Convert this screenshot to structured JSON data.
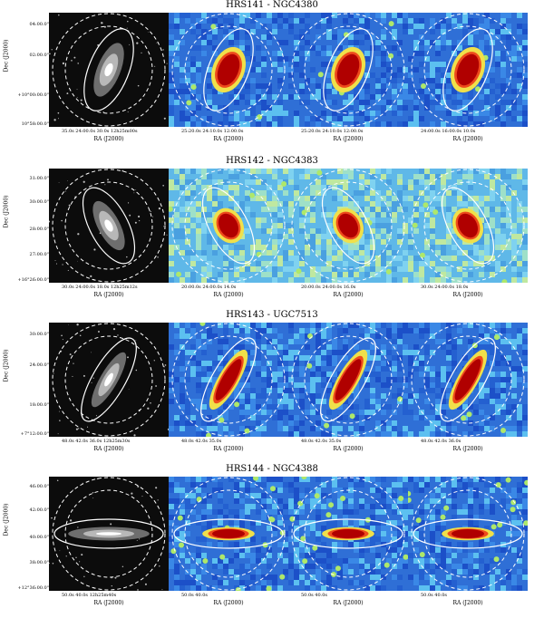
{
  "rows": [
    {
      "title": "HRS141 - NGC4380",
      "dec_label": "Dec (J2000)",
      "dec_ticks": [
        "04:00.0\"",
        "02:00.0\"",
        "+10°00:00.0\"",
        "10°58:00.0\""
      ],
      "panels": [
        {
          "ra_ticks": "35.0s   24:00.0s   30.0s   12h25m00s",
          "ra_label": "RA (J2000)"
        },
        {
          "ra_ticks": "25:20.0s   24:10.0s   12:00.0s",
          "ra_label": "RA (J2000)"
        },
        {
          "ra_ticks": "25:20.0s   24:10.0s   12:00.0s",
          "ra_label": "RA (J2000)"
        },
        {
          "ra_ticks": "24:00.0s   16:00.0s   10.0s",
          "ra_label": "RA (J2000)"
        }
      ]
    },
    {
      "title": "HRS142 - NGC4383",
      "dec_label": "Dec (J2000)",
      "dec_ticks": [
        "31:00.0\"",
        "30:00.0\"",
        "28:00.0\"",
        "27:00.0\"",
        "+16°26:00.0\""
      ],
      "panels": [
        {
          "ra_ticks": "30.0s   24:00.0s   18.0s   12h25m12s",
          "ra_label": "RA (J2000)"
        },
        {
          "ra_ticks": "20:00.0s   24:00.0s   14.0s",
          "ra_label": "RA (J2000)"
        },
        {
          "ra_ticks": "20:00.0s   24:00.0s   16.0s",
          "ra_label": "RA (J2000)"
        },
        {
          "ra_ticks": "30.0s   24:00.0s   18.0s",
          "ra_label": "RA (J2000)"
        }
      ]
    },
    {
      "title": "HRS143 - UGC7513",
      "dec_label": "Dec (J2000)",
      "dec_ticks": [
        "30:00.0\"",
        "24:00.0\"",
        "18:00.0\"",
        "+7°12:00.0\""
      ],
      "panels": [
        {
          "ra_ticks": "48.0s   42.0s   36.0s   12h25m30s",
          "ra_label": "RA (J2000)"
        },
        {
          "ra_ticks": "48.0s   42.0s   35.0s",
          "ra_label": "RA (J2000)"
        },
        {
          "ra_ticks": "48.0s   42.0s   35.0s",
          "ra_label": "RA (J2000)"
        },
        {
          "ra_ticks": "48.0s   42.0s   36.0s",
          "ra_label": "RA (J2000)"
        }
      ]
    },
    {
      "title": "HRS144 - NGC4388",
      "dec_label": "Dec (J2000)",
      "dec_ticks": [
        "46:00.0\"",
        "42:00.0\"",
        "40:00.0\"",
        "38:00.0\"",
        "+12°36:00.0\""
      ],
      "panels": [
        {
          "ra_ticks": "50.0s   40.0s   12h25m40s",
          "ra_label": "RA (J2000)"
        },
        {
          "ra_ticks": "50.0s   40.0s",
          "ra_label": "RA (J2000)"
        },
        {
          "ra_ticks": "50.0s   40.0s",
          "ra_label": "RA (J2000)"
        },
        {
          "ra_ticks": "50.0s   40.0s",
          "ra_label": "RA (J2000)"
        }
      ]
    }
  ]
}
